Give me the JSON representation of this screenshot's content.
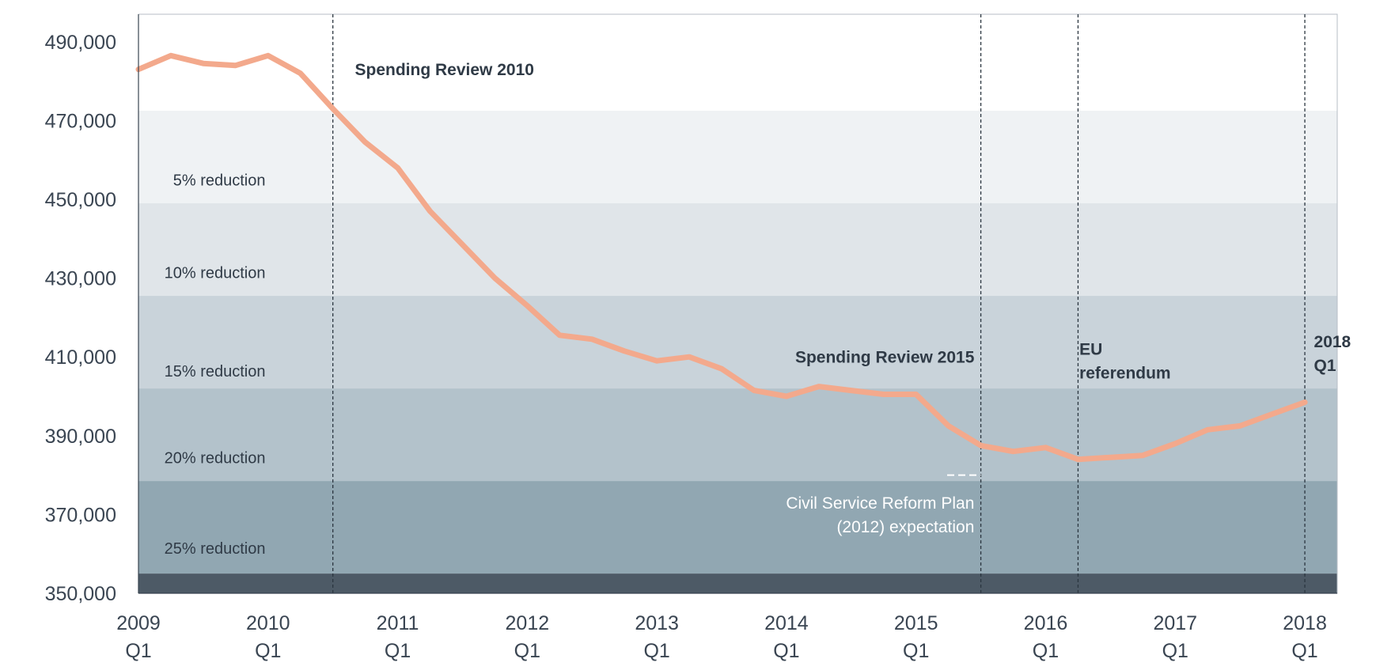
{
  "chart_data": {
    "type": "line",
    "xlim": [
      2009.0,
      2018.25
    ],
    "ylim": [
      350000,
      497000
    ],
    "y_ticks": [
      {
        "value": 350000,
        "label": "350,000"
      },
      {
        "value": 370000,
        "label": "370,000"
      },
      {
        "value": 390000,
        "label": "390,000"
      },
      {
        "value": 410000,
        "label": "410,000"
      },
      {
        "value": 430000,
        "label": "430,000"
      },
      {
        "value": 450000,
        "label": "450,000"
      },
      {
        "value": 470000,
        "label": "470,000"
      },
      {
        "value": 490000,
        "label": "490,000"
      }
    ],
    "x_ticks": [
      {
        "value": 2009,
        "year": "2009",
        "quarter": "Q1"
      },
      {
        "value": 2010,
        "year": "2010",
        "quarter": "Q1"
      },
      {
        "value": 2011,
        "year": "2011",
        "quarter": "Q1"
      },
      {
        "value": 2012,
        "year": "2012",
        "quarter": "Q1"
      },
      {
        "value": 2013,
        "year": "2013",
        "quarter": "Q1"
      },
      {
        "value": 2014,
        "year": "2014",
        "quarter": "Q1"
      },
      {
        "value": 2015,
        "year": "2015",
        "quarter": "Q1"
      },
      {
        "value": 2016,
        "year": "2016",
        "quarter": "Q1"
      },
      {
        "value": 2017,
        "year": "2017",
        "quarter": "Q1"
      },
      {
        "value": 2018,
        "year": "2018",
        "quarter": "Q1"
      }
    ],
    "bands": [
      {
        "label": "5% reduction",
        "from": 449000,
        "to": 472500,
        "color": "#eff2f4",
        "label_value": 453500
      },
      {
        "label": "10% reduction",
        "from": 425500,
        "to": 449000,
        "color": "#e0e5e9",
        "label_value": 430000
      },
      {
        "label": "15% reduction",
        "from": 402000,
        "to": 425500,
        "color": "#c9d3da",
        "label_value": 405000
      },
      {
        "label": "20% reduction",
        "from": 378500,
        "to": 402000,
        "color": "#b3c2cb",
        "label_value": 383000
      },
      {
        "label": "25% reduction",
        "from": 355000,
        "to": 378500,
        "color": "#91a7b2",
        "label_value": 360000
      },
      {
        "label": "",
        "from": 350000,
        "to": 355000,
        "color": "#4d5a66",
        "label_value": null
      }
    ],
    "series": [
      {
        "color": "#f3a98c",
        "x": [
          2009.0,
          2009.25,
          2009.5,
          2009.75,
          2010.0,
          2010.25,
          2010.5,
          2010.75,
          2011.0,
          2011.25,
          2011.5,
          2011.75,
          2012.0,
          2012.25,
          2012.5,
          2012.75,
          2013.0,
          2013.25,
          2013.5,
          2013.75,
          2014.0,
          2014.25,
          2014.5,
          2014.75,
          2015.0,
          2015.25,
          2015.5,
          2015.75,
          2016.0,
          2016.25,
          2016.5,
          2016.75,
          2017.0,
          2017.25,
          2017.5,
          2017.75,
          2018.0
        ],
        "values": [
          483000,
          486500,
          484500,
          484000,
          486500,
          482000,
          473000,
          464500,
          458000,
          447000,
          438500,
          430000,
          423000,
          415500,
          414500,
          411500,
          409000,
          410000,
          407000,
          401500,
          400000,
          402500,
          401500,
          400500,
          400500,
          392500,
          387500,
          386000,
          387000,
          384000,
          384500,
          385000,
          388000,
          391500,
          392500,
          395500,
          398500
        ]
      }
    ],
    "events": [
      {
        "x": 2010.5,
        "label_lines": [
          "Spending Review 2010"
        ],
        "anchor": "start",
        "label_x": 2010.67,
        "label_y": 481500
      },
      {
        "x": 2015.5,
        "label_lines": [
          "Spending Review 2015"
        ],
        "anchor": "end",
        "label_x": 2015.45,
        "label_y": 408500
      },
      {
        "x": 2016.25,
        "label_lines": [
          "EU",
          "referendum"
        ],
        "anchor": "start",
        "label_x": 2016.26,
        "label_y": 410500
      },
      {
        "x": 2018.0,
        "label_lines": [
          "2018",
          "Q1"
        ],
        "anchor": "start",
        "label_x": 2018.07,
        "label_y": 412500
      }
    ],
    "annotation": {
      "label_lines": [
        "Civil Service Reform Plan",
        "(2012) expectation"
      ],
      "value": 380000,
      "x_from": 2015.24,
      "x_to": 2015.5,
      "label_x": 2015.45,
      "label_y": 371500,
      "color": "#ffffff"
    }
  }
}
